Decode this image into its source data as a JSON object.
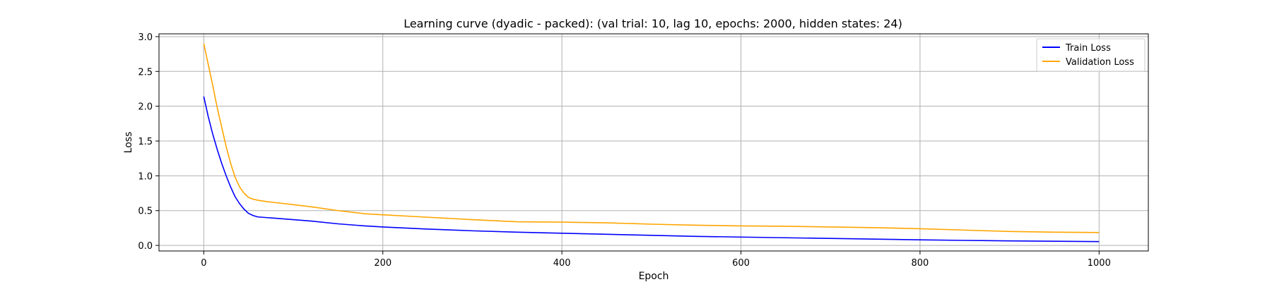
{
  "chart_data": {
    "type": "line",
    "title": "Learning curve (dyadic - packed): (val trial: 10, lag 10, epochs: 2000, hidden states: 24)",
    "xlabel": "Epoch",
    "ylabel": "Loss",
    "xlim": [
      -50,
      1055
    ],
    "ylim": [
      -0.08,
      3.04
    ],
    "xticks": [
      0,
      200,
      400,
      600,
      800,
      1000
    ],
    "yticks": [
      0.0,
      0.5,
      1.0,
      1.5,
      2.0,
      2.5,
      3.0
    ],
    "grid": true,
    "legend_position": "top-right",
    "series": [
      {
        "name": "Train Loss",
        "color": "#0000ff",
        "x": [
          0,
          5,
          10,
          15,
          20,
          25,
          30,
          35,
          40,
          45,
          50,
          55,
          60,
          70,
          80,
          100,
          120,
          150,
          180,
          200,
          250,
          300,
          350,
          400,
          450,
          500,
          550,
          600,
          650,
          700,
          750,
          800,
          850,
          900,
          950,
          1000
        ],
        "y": [
          2.14,
          1.85,
          1.6,
          1.38,
          1.18,
          1.0,
          0.84,
          0.7,
          0.6,
          0.52,
          0.46,
          0.43,
          0.41,
          0.4,
          0.39,
          0.37,
          0.35,
          0.31,
          0.28,
          0.265,
          0.235,
          0.21,
          0.19,
          0.175,
          0.16,
          0.145,
          0.13,
          0.12,
          0.11,
          0.1,
          0.09,
          0.08,
          0.072,
          0.065,
          0.06,
          0.055
        ]
      },
      {
        "name": "Validation Loss",
        "color": "#ffa500",
        "x": [
          0,
          5,
          10,
          15,
          20,
          25,
          30,
          35,
          40,
          45,
          50,
          55,
          60,
          70,
          80,
          100,
          120,
          150,
          180,
          200,
          250,
          300,
          350,
          400,
          450,
          500,
          550,
          600,
          650,
          700,
          750,
          800,
          850,
          900,
          950,
          1000
        ],
        "y": [
          2.9,
          2.6,
          2.3,
          1.98,
          1.7,
          1.42,
          1.18,
          0.98,
          0.84,
          0.75,
          0.69,
          0.665,
          0.65,
          0.63,
          0.615,
          0.585,
          0.555,
          0.5,
          0.455,
          0.44,
          0.405,
          0.37,
          0.34,
          0.335,
          0.325,
          0.305,
          0.29,
          0.28,
          0.275,
          0.265,
          0.255,
          0.24,
          0.22,
          0.2,
          0.19,
          0.185
        ]
      }
    ]
  }
}
